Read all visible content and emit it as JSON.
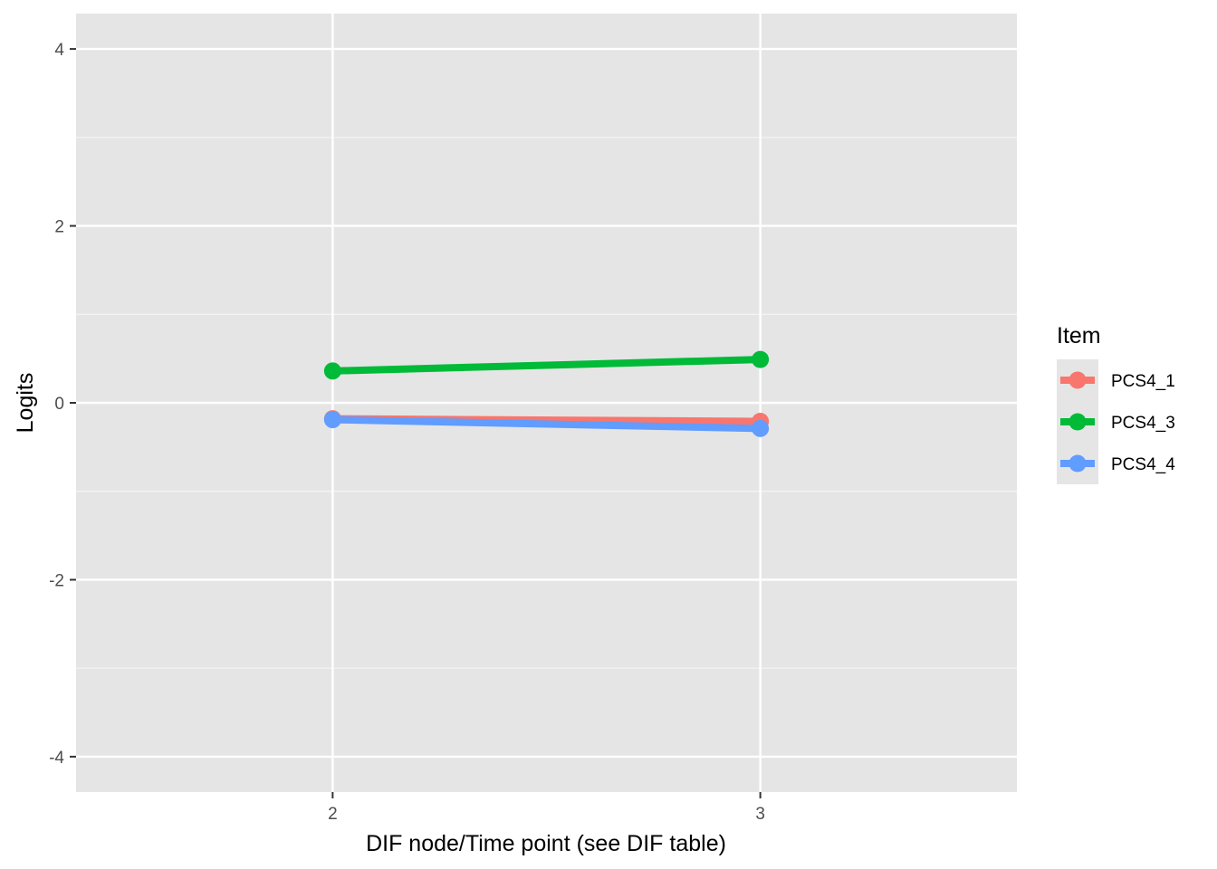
{
  "chart_data": {
    "type": "line",
    "title": "",
    "xlabel": "DIF node/Time point (see DIF table)",
    "ylabel": "Logits",
    "x": [
      2,
      3
    ],
    "x_ticks": [
      "2",
      "3"
    ],
    "xlim": [
      1.4,
      3.6
    ],
    "ylim": [
      -4.4,
      4.4
    ],
    "y_ticks": [
      4,
      2,
      0,
      -2,
      -4
    ],
    "y_tick_labels": [
      "4",
      "2",
      "0",
      "-2",
      "-4"
    ],
    "grid": true,
    "legend": {
      "title": "Item",
      "placement": "right"
    },
    "series": [
      {
        "name": "PCS4_1",
        "color": "#F8766D",
        "values": [
          -0.18,
          -0.21
        ]
      },
      {
        "name": "PCS4_3",
        "color": "#00BA38",
        "values": [
          0.36,
          0.49
        ]
      },
      {
        "name": "PCS4_4",
        "color": "#619CFF",
        "values": [
          -0.19,
          -0.29
        ]
      }
    ]
  }
}
